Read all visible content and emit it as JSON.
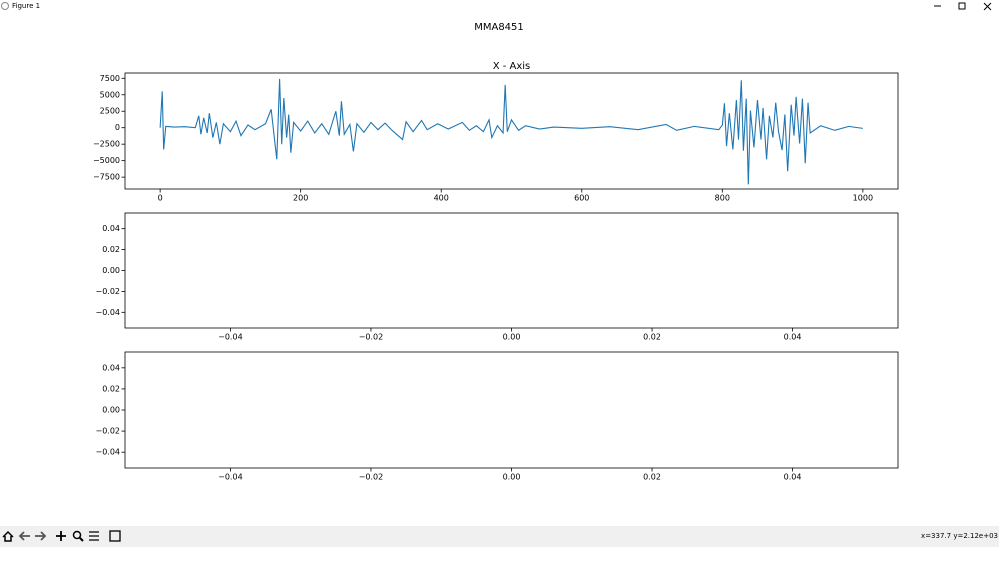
{
  "window": {
    "title": "Figure 1",
    "status": "x=337.7 y=2.12e+03"
  },
  "figure": {
    "suptitle": "MMA8451"
  },
  "chart_data": [
    {
      "type": "line",
      "title": "X - Axis",
      "color": "#1f77b4",
      "xlim": [
        -50,
        1050
      ],
      "ylim": [
        -9300,
        8300
      ],
      "xticks": [
        0,
        200,
        400,
        600,
        800,
        1000
      ],
      "yticks": [
        {
          "value": -7500,
          "label": "−7500"
        },
        {
          "value": -5000,
          "label": "−5000"
        },
        {
          "value": -2500,
          "label": "−2500"
        },
        0,
        2500,
        5000,
        7500
      ],
      "x": [
        0,
        3,
        5,
        8,
        20,
        35,
        50,
        55,
        58,
        62,
        67,
        70,
        75,
        80,
        85,
        90,
        100,
        108,
        115,
        125,
        135,
        150,
        158,
        163,
        166,
        170,
        173,
        176,
        180,
        183,
        186,
        190,
        200,
        210,
        220,
        230,
        240,
        250,
        255,
        258,
        262,
        270,
        275,
        280,
        290,
        300,
        310,
        320,
        330,
        345,
        350,
        360,
        372,
        380,
        395,
        410,
        430,
        440,
        450,
        460,
        468,
        472,
        480,
        488,
        491,
        494,
        500,
        510,
        520,
        540,
        560,
        600,
        640,
        680,
        720,
        735,
        760,
        795,
        800,
        803,
        806,
        810,
        815,
        820,
        823,
        827,
        830,
        834,
        837,
        840,
        845,
        850,
        855,
        858,
        863,
        867,
        872,
        876,
        880,
        885,
        889,
        893,
        898,
        902,
        905,
        910,
        914,
        918,
        922,
        925,
        940,
        960,
        980,
        1000
      ],
      "values": [
        0,
        5500,
        -3300,
        200,
        100,
        150,
        0,
        1800,
        -1000,
        1500,
        -800,
        2200,
        -1500,
        800,
        -2500,
        600,
        -600,
        1000,
        -1200,
        400,
        -300,
        600,
        2800,
        -2000,
        -4800,
        7400,
        -2500,
        4500,
        -1500,
        2000,
        -3800,
        800,
        -500,
        1000,
        -800,
        600,
        -1000,
        2500,
        -1200,
        4000,
        -1000,
        500,
        -3600,
        600,
        -700,
        800,
        -300,
        700,
        -400,
        -1800,
        900,
        -600,
        1100,
        -300,
        600,
        -200,
        800,
        -400,
        300,
        -600,
        1200,
        -1500,
        300,
        -800,
        6500,
        -600,
        1200,
        -400,
        300,
        -200,
        100,
        -100,
        150,
        -300,
        500,
        -400,
        200,
        -300,
        400,
        3700,
        -2800,
        2200,
        -3300,
        4200,
        -1800,
        7200,
        -3500,
        4400,
        -8600,
        2600,
        -3000,
        4200,
        -1800,
        3000,
        -4800,
        1800,
        -1500,
        3800,
        -600,
        -3400,
        2000,
        -6600,
        3500,
        -1200,
        4700,
        -2400,
        4400,
        -5400,
        3800,
        -800,
        300,
        -400,
        200,
        -100
      ]
    },
    {
      "type": "line",
      "xlim": [
        -0.055,
        0.055
      ],
      "ylim": [
        -0.055,
        0.055
      ],
      "xticks": [
        {
          "value": -0.04,
          "label": "−0.04"
        },
        {
          "value": -0.02,
          "label": "−0.02"
        },
        {
          "value": 0,
          "label": "0.00"
        },
        0.02,
        0.04
      ],
      "yticks": [
        {
          "value": -0.04,
          "label": "−0.04"
        },
        {
          "value": -0.02,
          "label": "−0.02"
        },
        {
          "value": 0,
          "label": "0.00"
        },
        0.02,
        0.04
      ]
    },
    {
      "type": "line",
      "xlim": [
        -0.055,
        0.055
      ],
      "ylim": [
        -0.055,
        0.055
      ],
      "xticks": [
        {
          "value": -0.04,
          "label": "−0.04"
        },
        {
          "value": -0.02,
          "label": "−0.02"
        },
        {
          "value": 0,
          "label": "0.00"
        },
        0.02,
        0.04
      ],
      "yticks": [
        {
          "value": -0.04,
          "label": "−0.04"
        },
        {
          "value": -0.02,
          "label": "−0.02"
        },
        {
          "value": 0,
          "label": "0.00"
        },
        0.02,
        0.04
      ]
    }
  ]
}
